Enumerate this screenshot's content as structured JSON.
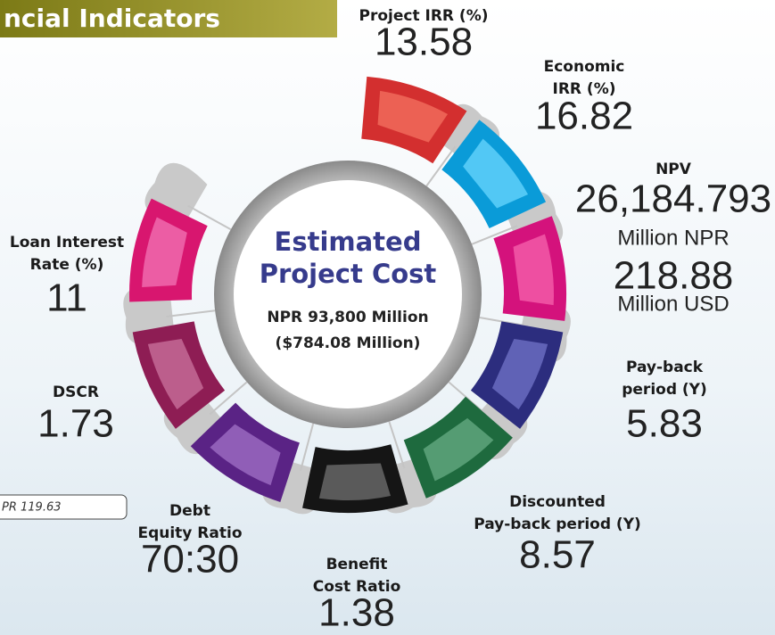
{
  "header": {
    "title": "ncial Indicators"
  },
  "note": "PR 119.63",
  "center": {
    "title_lines": [
      "Estimated",
      "Project Cost"
    ],
    "lines": [
      "NPR 93,800 Million",
      "($784.08 Million)"
    ]
  },
  "indicators": [
    {
      "label_lines": [
        "Project IRR (%)"
      ],
      "value": "13.58"
    },
    {
      "label_lines": [
        "Economic",
        "IRR (%)"
      ],
      "value": "16.82"
    },
    {
      "label_lines": [
        "NPV"
      ],
      "value": "26,184.793",
      "unit": "Million NPR",
      "value2": "218.88",
      "unit2": "Million USD"
    },
    {
      "label_lines": [
        "Pay-back",
        "period (Y)"
      ],
      "value": "5.83"
    },
    {
      "label_lines": [
        "Discounted",
        "Pay-back period (Y)"
      ],
      "value": "8.57"
    },
    {
      "label_lines": [
        "Benefit",
        "Cost Ratio"
      ],
      "value": "1.38"
    },
    {
      "label_lines": [
        "Debt",
        "Equity Ratio"
      ],
      "value": "70:30"
    },
    {
      "label_lines": [
        "DSCR"
      ],
      "value": "1.73"
    },
    {
      "label_lines": [
        "Loan Interest",
        "Rate (%)"
      ],
      "value": "11"
    }
  ]
}
